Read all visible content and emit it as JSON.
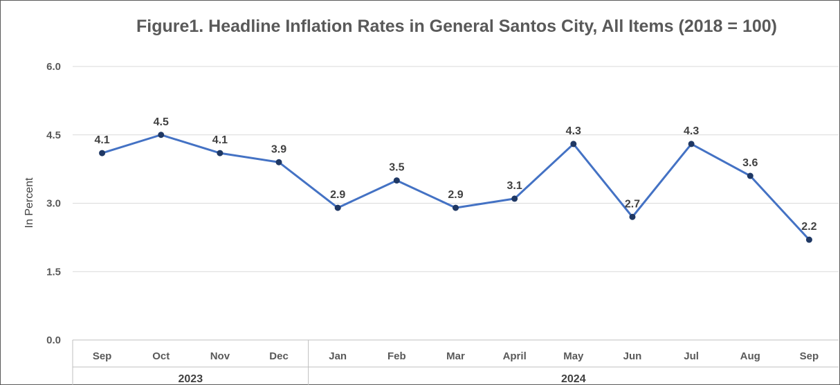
{
  "chart_data": {
    "type": "line",
    "title": "Figure1. Headline Inflation Rates in General Santos City, All  Items (2018 = 100)",
    "ylabel": "In Percent",
    "xlabel": "",
    "ylim": [
      0,
      6
    ],
    "yticks": [
      "0.0",
      "1.5",
      "3.0",
      "4.5",
      "6.0"
    ],
    "grid": true,
    "legend": "none",
    "categories": [
      "Sep",
      "Oct",
      "Nov",
      "Dec",
      "Jan",
      "Feb",
      "Mar",
      "April",
      "May",
      "Jun",
      "Jul",
      "Aug",
      "Sep"
    ],
    "groups": [
      {
        "label": "2023",
        "count": 4
      },
      {
        "label": "2024",
        "count": 9
      }
    ],
    "series": [
      {
        "values": [
          4.1,
          4.5,
          4.1,
          3.9,
          2.9,
          3.5,
          2.9,
          3.1,
          4.3,
          2.7,
          4.3,
          3.6,
          2.2
        ],
        "labels": [
          "4.1",
          "4.5",
          "4.1",
          "3.9",
          "2.9",
          "3.5",
          "2.9",
          "3.1",
          "4.3",
          "2.7",
          "4.3",
          "3.6",
          "2.2"
        ],
        "color": "#4472C4",
        "marker_color": "#1F3864"
      }
    ]
  }
}
